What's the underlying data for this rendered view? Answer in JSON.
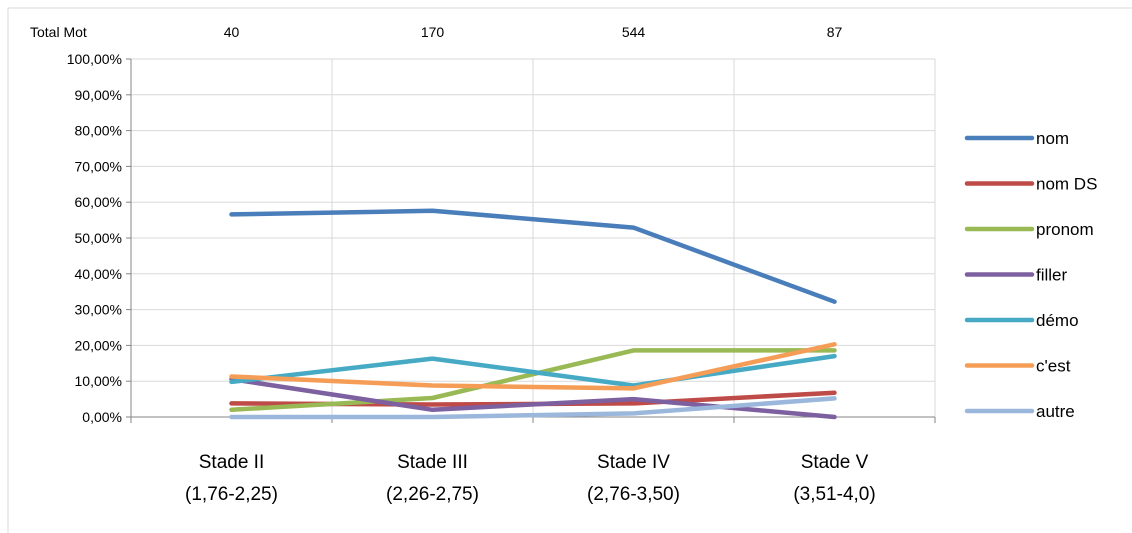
{
  "chart_data": {
    "type": "line",
    "categories": [
      "Stade II",
      "Stade III",
      "Stade IV",
      "Stade V"
    ],
    "category_sublabels": [
      "(1,76-2,25)",
      "(2,26-2,75)",
      "(2,76-3,50)",
      "(3,51-4,0)"
    ],
    "header_label": "Total Mot",
    "header_values": [
      "40",
      "170",
      "544",
      "87"
    ],
    "y_ticks": [
      "0,00%",
      "10,00%",
      "20,00%",
      "30,00%",
      "40,00%",
      "50,00%",
      "60,00%",
      "70,00%",
      "80,00%",
      "90,00%",
      "100,00%"
    ],
    "ylim": [
      0,
      100
    ],
    "grid": true,
    "legend_position": "right",
    "series": [
      {
        "name": "nom",
        "color": "#4A7EBB",
        "values": [
          56.6,
          57.6,
          52.9,
          32.2
        ]
      },
      {
        "name": "nom DS",
        "color": "#BE4B48",
        "values": [
          3.8,
          3.5,
          3.8,
          6.8
        ]
      },
      {
        "name": "pronom",
        "color": "#98B954",
        "values": [
          2.0,
          5.3,
          18.6,
          18.6
        ]
      },
      {
        "name": "filler",
        "color": "#7D60A0",
        "values": [
          10.6,
          2.0,
          5.0,
          0.0
        ]
      },
      {
        "name": "démo",
        "color": "#46AAC5",
        "values": [
          9.8,
          16.3,
          8.8,
          17.0
        ]
      },
      {
        "name": "c'est",
        "color": "#F59D56",
        "values": [
          11.3,
          8.8,
          8.0,
          20.3
        ]
      },
      {
        "name": "autre",
        "color": "#9BB7DB",
        "values": [
          0.0,
          0.0,
          1.0,
          5.2
        ]
      }
    ]
  }
}
